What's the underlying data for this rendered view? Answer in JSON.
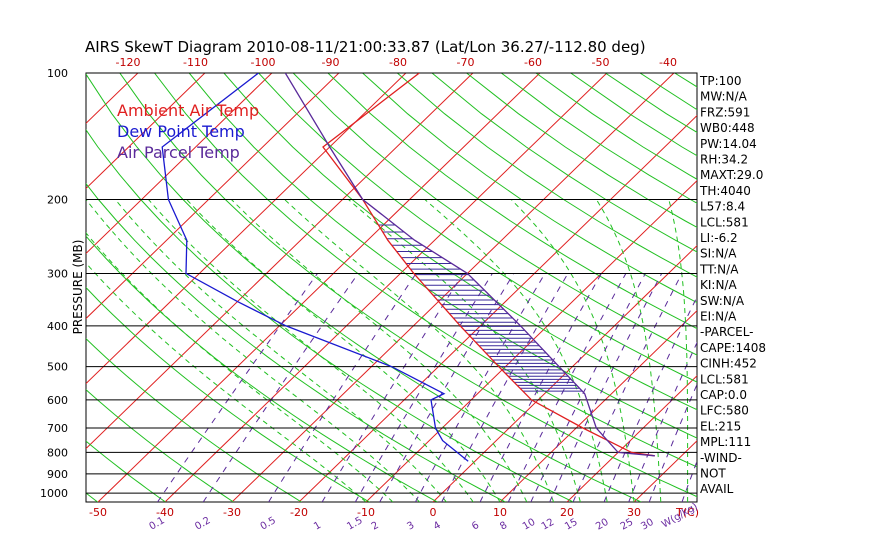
{
  "chart_data": {
    "type": "line",
    "title": "AIRS SkewT Diagram 2010-08-11/21:00:33.87 (Lat/Lon 36.27/-112.80 deg)",
    "ylabel": "PRESSURE (MB)",
    "xlabel_bottom": "T(C)",
    "mixing_unit": "W(g/kg)",
    "pressure_ticks": [
      100,
      200,
      300,
      400,
      500,
      600,
      700,
      800,
      900,
      1000
    ],
    "pressure_labels": [
      "100",
      "200",
      "300",
      "400",
      "500",
      "600",
      "700",
      "800",
      "900",
      "1000"
    ],
    "temp_ticks_bottom": [
      -50,
      -40,
      -30,
      -20,
      -10,
      0,
      10,
      20,
      30
    ],
    "temp_labels_bottom": [
      "-50",
      "-40",
      "-30",
      "-20",
      "-10",
      "0",
      "10",
      "20",
      "30"
    ],
    "temp_ticks_top": [
      -120,
      -110,
      -100,
      -90,
      -80,
      -70,
      -60,
      -50,
      -40
    ],
    "temp_labels_top": [
      "-120",
      "-110",
      "-100",
      "-90",
      "-80",
      "-70",
      "-60",
      "-50",
      "-40"
    ],
    "mixing_ratio_labels": [
      "0.1",
      "0.2",
      "0.5",
      "1",
      "1.5",
      "2",
      "3",
      "4",
      "6",
      "8",
      "10",
      "12",
      "15",
      "20",
      "25",
      "30",
      "40"
    ],
    "legend": [
      {
        "name": "Ambient Air Temp",
        "color": "#e02020"
      },
      {
        "name": "Dew Point Temp",
        "color": "#1a1ad0"
      },
      {
        "name": "Air Parcel Temp",
        "color": "#5a2a9a"
      }
    ],
    "series": [
      {
        "name": "Ambient Air Temp",
        "color": "#e02020",
        "points": [
          {
            "p": 100,
            "t": -68
          },
          {
            "p": 150,
            "t": -71
          },
          {
            "p": 200,
            "t": -57
          },
          {
            "p": 250,
            "t": -47
          },
          {
            "p": 300,
            "t": -38
          },
          {
            "p": 400,
            "t": -23
          },
          {
            "p": 500,
            "t": -11
          },
          {
            "p": 600,
            "t": -1
          },
          {
            "p": 700,
            "t": 11
          },
          {
            "p": 800,
            "t": 22
          },
          {
            "p": 815,
            "t": 26
          }
        ]
      },
      {
        "name": "Dew Point Temp",
        "color": "#1a1ad0",
        "points": [
          {
            "p": 100,
            "t": -92
          },
          {
            "p": 150,
            "t": -95
          },
          {
            "p": 200,
            "t": -86
          },
          {
            "p": 250,
            "t": -77
          },
          {
            "p": 300,
            "t": -72
          },
          {
            "p": 350,
            "t": -60
          },
          {
            "p": 400,
            "t": -49
          },
          {
            "p": 500,
            "t": -27
          },
          {
            "p": 580,
            "t": -15
          },
          {
            "p": 600,
            "t": -16
          },
          {
            "p": 700,
            "t": -11
          },
          {
            "p": 750,
            "t": -8
          },
          {
            "p": 840,
            "t": -1
          }
        ]
      },
      {
        "name": "Air Parcel Temp",
        "color": "#5a2a9a",
        "points": [
          {
            "p": 100,
            "t": -88
          },
          {
            "p": 150,
            "t": -70
          },
          {
            "p": 200,
            "t": -57
          },
          {
            "p": 250,
            "t": -43
          },
          {
            "p": 300,
            "t": -30
          },
          {
            "p": 400,
            "t": -14
          },
          {
            "p": 500,
            "t": -2
          },
          {
            "p": 580,
            "t": 6
          },
          {
            "p": 700,
            "t": 13
          },
          {
            "p": 800,
            "t": 20
          },
          {
            "p": 815,
            "t": 26
          }
        ]
      }
    ],
    "stats": [
      "TP:100",
      "MW:N/A",
      "FRZ:591",
      "WB0:448",
      "PW:14.04",
      "RH:34.2",
      "MAXT:29.0",
      "TH:4040",
      "L57:8.4",
      "LCL:581",
      "LI:-6.2",
      "SI:N/A",
      "TT:N/A",
      "KI:N/A",
      "SW:N/A",
      "EI:N/A",
      "-PARCEL-",
      "CAPE:1408",
      "CINH:452",
      "LCL:581",
      "CAP:0.0",
      "LFC:580",
      "EL:215",
      "MPL:111",
      "-WIND-",
      "NOT",
      "AVAIL"
    ],
    "colors": {
      "isotherm": "#e02020",
      "dry_adiabat": "#22c022",
      "moist_adiabat": "#22c022",
      "mixing_ratio": "#5a2a9a",
      "isobar": "#000000",
      "cape_hatch": "#3a2a9a"
    }
  }
}
